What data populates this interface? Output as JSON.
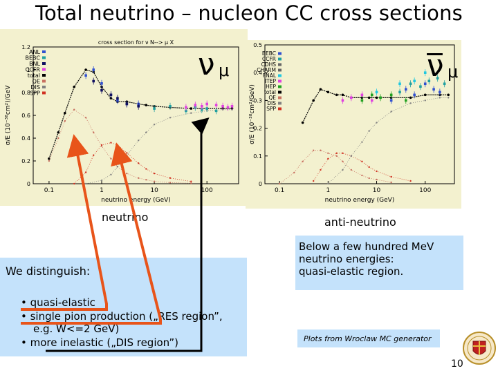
{
  "slide": {
    "title": "Total neutrino – nucleon CC cross sections",
    "caption_left": "neutrino",
    "caption_right": "anti-neutrino",
    "distinguish_heading": "We distinguish:",
    "bullets": [
      "• quasi-elastic",
      "• single pion production („RES region”,",
      "e.g. W<=2 GeV)",
      "• more inelastic („DIS region”)"
    ],
    "region_note": [
      "Below a few hundred MeV",
      "neutrino energies:",
      "quasi-elastic region."
    ],
    "plots_note": "Plots from Wroclaw MC generator",
    "page_number": "10",
    "colors": {
      "plot_bg": "#f3f1cf",
      "box_bg": "#c4e2fb",
      "arrow": "#e8541a",
      "arrow_dark": "#000000"
    }
  },
  "chart_data": [
    {
      "type": "scatter",
      "title": "cross section for ν N--> μ X",
      "symbol": "ν",
      "symbol_sub": "μ",
      "xlabel": "neutrino energy (GeV)",
      "ylabel": "σ/E (10⁻³⁸cm²)/GeV",
      "xscale": "log",
      "xlim": [
        0.05,
        400
      ],
      "ylim": [
        0,
        1.2
      ],
      "xticks": [
        {
          "v": 0.1,
          "label": "0.1"
        },
        {
          "v": 1,
          "label": "1"
        },
        {
          "v": 10,
          "label": "10"
        },
        {
          "v": 100,
          "label": "100"
        }
      ],
      "yticks": [
        {
          "v": 0,
          "label": "0"
        },
        {
          "v": 0.2,
          "label": "0.2"
        },
        {
          "v": 0.4,
          "label": "0.4"
        },
        {
          "v": 0.6,
          "label": "0.6"
        },
        {
          "v": 0.8,
          "label": "0.8"
        },
        {
          "v": 1,
          "label": "1"
        },
        {
          "v": 1.2,
          "label": "1.2"
        }
      ],
      "legend": [
        "ANL",
        "BEBC",
        "BNL",
        "CCFR",
        "total",
        "QE",
        "DIS",
        "SPP"
      ],
      "series": [
        {
          "name": "total",
          "color": "#000000",
          "x": [
            0.1,
            0.15,
            0.2,
            0.3,
            0.5,
            0.7,
            1,
            1.5,
            2,
            3,
            5,
            7,
            10,
            20,
            50,
            100,
            200,
            300
          ],
          "y": [
            0.22,
            0.45,
            0.62,
            0.85,
            1.0,
            0.98,
            0.85,
            0.75,
            0.72,
            0.72,
            0.7,
            0.69,
            0.68,
            0.67,
            0.66,
            0.66,
            0.66,
            0.66
          ]
        },
        {
          "name": "QE",
          "color": "#c87060",
          "x": [
            0.1,
            0.15,
            0.2,
            0.3,
            0.5,
            0.7,
            1,
            1.5,
            2,
            3,
            5,
            7,
            10,
            20,
            50
          ],
          "y": [
            0.2,
            0.4,
            0.55,
            0.65,
            0.58,
            0.45,
            0.33,
            0.22,
            0.15,
            0.09,
            0.05,
            0.035,
            0.02,
            0.01,
            0.005
          ]
        },
        {
          "name": "SPP",
          "color": "#d03020",
          "x": [
            0.3,
            0.5,
            0.7,
            1,
            1.5,
            2,
            3,
            5,
            7,
            10,
            20,
            50
          ],
          "y": [
            0.0,
            0.1,
            0.25,
            0.34,
            0.36,
            0.34,
            0.27,
            0.18,
            0.13,
            0.09,
            0.05,
            0.02
          ]
        },
        {
          "name": "DIS",
          "color": "#808080",
          "x": [
            0.5,
            1,
            1.5,
            2,
            3,
            5,
            7,
            10,
            20,
            50,
            100,
            200,
            300
          ],
          "y": [
            0.0,
            0.03,
            0.08,
            0.15,
            0.25,
            0.38,
            0.45,
            0.52,
            0.58,
            0.62,
            0.64,
            0.65,
            0.65
          ]
        },
        {
          "name": "ANL",
          "color": "#3050d0",
          "x": [
            0.5,
            0.7,
            1,
            1.5,
            2,
            3,
            5
          ],
          "y": [
            0.95,
            1.0,
            0.88,
            0.78,
            0.73,
            0.7,
            0.7
          ]
        },
        {
          "name": "BEBC",
          "color": "#20a0a0",
          "x": [
            10,
            20,
            40,
            60,
            80,
            100,
            150
          ],
          "y": [
            0.66,
            0.68,
            0.64,
            0.67,
            0.65,
            0.66,
            0.64
          ]
        },
        {
          "name": "BNL",
          "color": "#101060",
          "x": [
            0.7,
            1,
            1.5,
            2,
            3,
            5
          ],
          "y": [
            0.9,
            0.82,
            0.78,
            0.75,
            0.7,
            0.68
          ]
        },
        {
          "name": "CCFR",
          "color": "#e040e0",
          "x": [
            40,
            60,
            80,
            100,
            150,
            200,
            250,
            300
          ],
          "y": [
            0.67,
            0.69,
            0.68,
            0.7,
            0.69,
            0.68,
            0.67,
            0.68
          ]
        }
      ]
    },
    {
      "type": "scatter",
      "symbol": "ν̅",
      "symbol_sub": "μ",
      "xlabel": "neutrino energy (GeV)",
      "ylabel": "σ/E (10⁻³⁸cm²/GeV)",
      "xscale": "log",
      "xlim": [
        0.05,
        400
      ],
      "ylim": [
        0,
        0.5
      ],
      "xticks": [
        {
          "v": 0.1,
          "label": "0.1"
        },
        {
          "v": 1,
          "label": "1"
        },
        {
          "v": 10,
          "label": "10"
        },
        {
          "v": 100,
          "label": "100"
        }
      ],
      "yticks": [
        {
          "v": 0,
          "label": "0"
        },
        {
          "v": 0.1,
          "label": "0.1"
        },
        {
          "v": 0.2,
          "label": "0.2"
        },
        {
          "v": 0.3,
          "label": "0.3"
        },
        {
          "v": 0.4,
          "label": "0.4"
        },
        {
          "v": 0.5,
          "label": "0.5"
        }
      ],
      "legend": [
        "BEBC",
        "CCFR",
        "CDHS",
        "CHARM",
        "FNAL",
        "ITEP",
        "IHEP",
        "total",
        "QE",
        "DIS",
        "SPP"
      ],
      "series": [
        {
          "name": "total",
          "color": "#000000",
          "x": [
            0.3,
            0.5,
            0.7,
            1,
            1.5,
            2,
            3,
            5,
            7,
            10,
            20,
            50,
            100,
            200,
            300
          ],
          "y": [
            0.22,
            0.3,
            0.34,
            0.33,
            0.32,
            0.32,
            0.31,
            0.31,
            0.31,
            0.31,
            0.31,
            0.31,
            0.32,
            0.32,
            0.32
          ]
        },
        {
          "name": "QE",
          "color": "#c87060",
          "x": [
            0.1,
            0.2,
            0.3,
            0.5,
            0.7,
            1,
            1.5,
            2,
            3,
            5,
            7,
            10,
            20
          ],
          "y": [
            0.0,
            0.04,
            0.08,
            0.12,
            0.12,
            0.11,
            0.1,
            0.08,
            0.05,
            0.03,
            0.02,
            0.015,
            0.005
          ]
        },
        {
          "name": "SPP",
          "color": "#d03020",
          "x": [
            0.5,
            0.7,
            1,
            1.5,
            2,
            3,
            5,
            7,
            10,
            20,
            50
          ],
          "y": [
            0.01,
            0.05,
            0.09,
            0.11,
            0.11,
            0.1,
            0.08,
            0.06,
            0.045,
            0.025,
            0.01
          ]
        },
        {
          "name": "DIS",
          "color": "#808080",
          "x": [
            1,
            2,
            3,
            5,
            7,
            10,
            20,
            50,
            100,
            200,
            300
          ],
          "y": [
            0.0,
            0.05,
            0.1,
            0.15,
            0.19,
            0.22,
            0.26,
            0.29,
            0.3,
            0.31,
            0.31
          ]
        },
        {
          "name": "BEBC",
          "color": "#3050d0",
          "x": [
            20,
            40,
            60,
            100,
            150,
            200
          ],
          "y": [
            0.3,
            0.34,
            0.32,
            0.36,
            0.34,
            0.33
          ]
        },
        {
          "name": "CCFR",
          "color": "#20a0a0",
          "x": [
            30,
            50,
            80,
            120,
            180,
            250
          ],
          "y": [
            0.33,
            0.36,
            0.35,
            0.37,
            0.38,
            0.36
          ]
        },
        {
          "name": "FNAL",
          "color": "#20c8e0",
          "x": [
            10,
            30,
            60,
            100
          ],
          "y": [
            0.33,
            0.36,
            0.37,
            0.4
          ]
        },
        {
          "name": "ITEP",
          "color": "#e040e0",
          "x": [
            2,
            3,
            5,
            8
          ],
          "y": [
            0.3,
            0.31,
            0.32,
            0.3
          ]
        },
        {
          "name": "IHEP",
          "color": "#20a020",
          "x": [
            5,
            8,
            12,
            20,
            40
          ],
          "y": [
            0.3,
            0.32,
            0.31,
            0.32,
            0.3
          ]
        }
      ]
    }
  ]
}
